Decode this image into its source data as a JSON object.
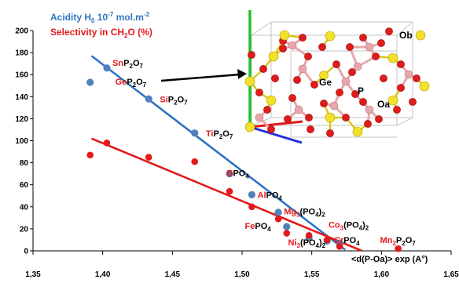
{
  "chart_data": {
    "type": "scatter",
    "title": "",
    "xlabel": "<d(P-Oa)> exp (A°)",
    "ylabel": "",
    "xlim": [
      1.35,
      1.65
    ],
    "ylim": [
      0,
      200
    ],
    "x_ticks": [
      "1,35",
      "1,40",
      "1,45",
      "1,50",
      "1,55",
      "1,60",
      "1,65"
    ],
    "y_ticks": [
      "0",
      "20",
      "40",
      "60",
      "80",
      "100",
      "120",
      "140",
      "160",
      "180",
      "200"
    ],
    "grid": false,
    "legend_position": "top-left",
    "series": [
      {
        "name": "Acidity H0 10-7 mol.m-2",
        "color": "#4f81bd",
        "points": [
          {
            "x": 1.391,
            "y": 153
          },
          {
            "x": 1.403,
            "y": 166
          },
          {
            "x": 1.433,
            "y": 138
          },
          {
            "x": 1.466,
            "y": 107
          },
          {
            "x": 1.491,
            "y": 70
          },
          {
            "x": 1.507,
            "y": 51
          },
          {
            "x": 1.526,
            "y": 35
          },
          {
            "x": 1.532,
            "y": 22
          },
          {
            "x": 1.548,
            "y": 12
          },
          {
            "x": 1.561,
            "y": 9
          },
          {
            "x": 1.57,
            "y": 7
          }
        ]
      },
      {
        "name": "Selectivity in CH2O (%)",
        "color": "#e31a1c",
        "points": [
          {
            "x": 1.391,
            "y": 87
          },
          {
            "x": 1.403,
            "y": 98
          },
          {
            "x": 1.433,
            "y": 85
          },
          {
            "x": 1.466,
            "y": 81
          },
          {
            "x": 1.491,
            "y": 54
          },
          {
            "x": 1.507,
            "y": 40
          },
          {
            "x": 1.526,
            "y": 29
          },
          {
            "x": 1.532,
            "y": 16
          },
          {
            "x": 1.548,
            "y": 14
          },
          {
            "x": 1.561,
            "y": 10
          },
          {
            "x": 1.57,
            "y": 4
          },
          {
            "x": 1.612,
            "y": 2
          }
        ]
      }
    ],
    "trendlines": [
      {
        "series": "Acidity H0 10-7 mol.m-2",
        "color": "#2e75c2",
        "x1": 1.392,
        "y1": 177,
        "x2": 1.574,
        "y2": 1
      },
      {
        "series": "Selectivity in CH2O (%)",
        "color": "#e31a1c",
        "x1": 1.392,
        "y1": 102,
        "x2": 1.586,
        "y2": 0
      }
    ],
    "point_labels": [
      {
        "x": 1.407,
        "y": 168,
        "parts": [
          [
            "Sn",
            "#e31a1c",
            ""
          ],
          [
            "P",
            "#000000",
            ""
          ],
          [
            "2",
            "#000000",
            "sub"
          ],
          [
            "O",
            "#000000",
            ""
          ],
          [
            "7",
            "#000000",
            "sub"
          ]
        ]
      },
      {
        "x": 1.409,
        "y": 151,
        "parts": [
          [
            "Ge",
            "#e31a1c",
            ""
          ],
          [
            "P",
            "#000000",
            ""
          ],
          [
            "2",
            "#000000",
            "sub"
          ],
          [
            "O",
            "#000000",
            ""
          ],
          [
            "7",
            "#000000",
            "sub"
          ]
        ]
      },
      {
        "x": 1.441,
        "y": 135,
        "parts": [
          [
            "Si",
            "#e31a1c",
            ""
          ],
          [
            "P",
            "#000000",
            ""
          ],
          [
            "2",
            "#000000",
            "sub"
          ],
          [
            "O",
            "#000000",
            ""
          ],
          [
            "7",
            "#000000",
            "sub"
          ]
        ]
      },
      {
        "x": 1.474,
        "y": 104,
        "parts": [
          [
            "Ti",
            "#e31a1c",
            ""
          ],
          [
            "P",
            "#000000",
            ""
          ],
          [
            "2",
            "#000000",
            "sub"
          ],
          [
            "O",
            "#000000",
            ""
          ],
          [
            "7",
            "#000000",
            "sub"
          ]
        ]
      },
      {
        "x": 1.489,
        "y": 68,
        "parts": [
          [
            "B",
            "#e31a1c",
            ""
          ],
          [
            "PO",
            "#000000",
            ""
          ],
          [
            "4",
            "#000000",
            "sub"
          ]
        ]
      },
      {
        "x": 1.511,
        "y": 48,
        "parts": [
          [
            "Al",
            "#e31a1c",
            ""
          ],
          [
            "PO",
            "#000000",
            ""
          ],
          [
            "4",
            "#000000",
            "sub"
          ]
        ]
      },
      {
        "x": 1.53,
        "y": 33,
        "parts": [
          [
            "Mg",
            "#e31a1c",
            ""
          ],
          [
            "3",
            "#e31a1c",
            "sub"
          ],
          [
            "(PO",
            "#000000",
            ""
          ],
          [
            "4",
            "#000000",
            "sub"
          ],
          [
            ")",
            "#000000",
            ""
          ],
          [
            "2",
            "#000000",
            "sub"
          ]
        ]
      },
      {
        "x": 1.502,
        "y": 20,
        "parts": [
          [
            "Fe",
            "#e31a1c",
            ""
          ],
          [
            "PO",
            "#000000",
            ""
          ],
          [
            "4",
            "#000000",
            "sub"
          ]
        ]
      },
      {
        "x": 1.562,
        "y": 21,
        "parts": [
          [
            "Co",
            "#e31a1c",
            ""
          ],
          [
            "3",
            "#e31a1c",
            "sub"
          ],
          [
            "(PO",
            "#000000",
            ""
          ],
          [
            "4",
            "#000000",
            "sub"
          ],
          [
            ")",
            "#000000",
            ""
          ],
          [
            "2",
            "#000000",
            "sub"
          ]
        ]
      },
      {
        "x": 1.533,
        "y": 5,
        "parts": [
          [
            "Ni",
            "#e31a1c",
            ""
          ],
          [
            "3",
            "#e31a1c",
            "sub"
          ],
          [
            "(PO",
            "#000000",
            ""
          ],
          [
            "4",
            "#000000",
            "sub"
          ],
          [
            ")",
            "#000000",
            ""
          ],
          [
            "2",
            "#000000",
            "sub"
          ]
        ]
      },
      {
        "x": 1.566,
        "y": 7,
        "parts": [
          [
            "Cr",
            "#e31a1c",
            ""
          ],
          [
            "PO",
            "#000000",
            ""
          ],
          [
            "4",
            "#000000",
            "sub"
          ]
        ]
      },
      {
        "x": 1.599,
        "y": 7,
        "parts": [
          [
            "Mn",
            "#e31a1c",
            ""
          ],
          [
            "2",
            "#e31a1c",
            "sub"
          ],
          [
            "P",
            "#000000",
            ""
          ],
          [
            "2",
            "#000000",
            "sub"
          ],
          [
            "O",
            "#000000",
            ""
          ],
          [
            "7",
            "#000000",
            "sub"
          ]
        ]
      }
    ],
    "inset": {
      "atom_labels": [
        "Ob",
        "Ge",
        "P",
        "Oa"
      ],
      "atom_colors": {
        "metal": "#f2e02a",
        "oxygen": "#e01b1b",
        "phosphorus": "#e8a7ad",
        "axis_a": "#22c22a",
        "axis_b": "#2431d8",
        "axis_c": "#e01b1b"
      }
    }
  }
}
